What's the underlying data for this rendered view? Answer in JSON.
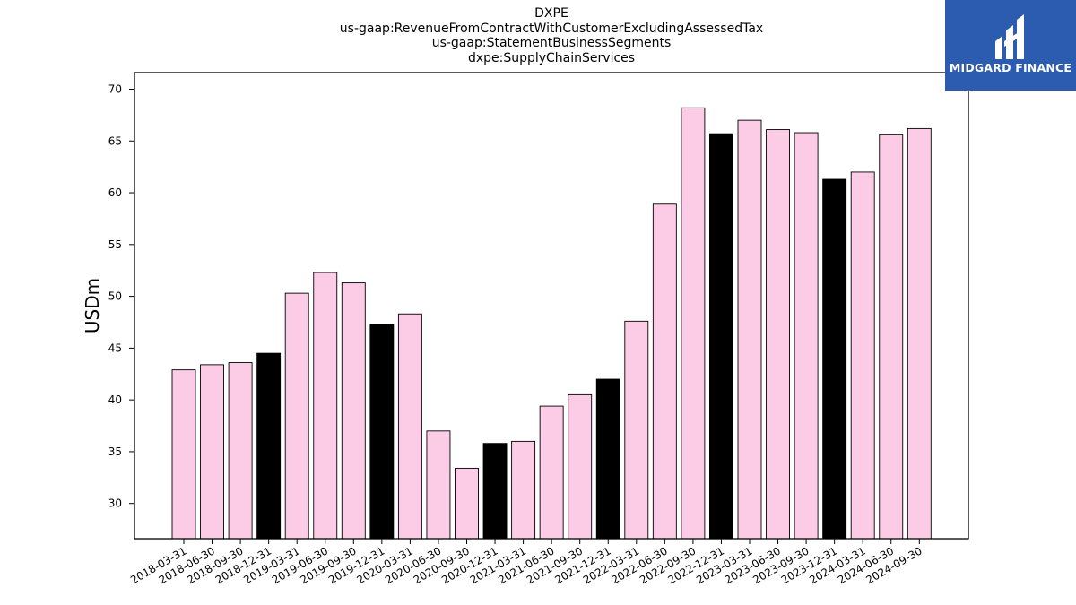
{
  "title_lines": [
    "DXPE",
    "us-gaap:RevenueFromContractWithCustomerExcludingAssessedTax",
    "us-gaap:StatementBusinessSegments",
    "dxpe:SupplyChainServices"
  ],
  "logo": {
    "text": "MIDGARD FINANCE",
    "icon": "midgard-logo-icon",
    "background": "#2b5caf"
  },
  "colors": {
    "bar": "#fccce6",
    "bar_highlight": "#000000",
    "bar_edge": "#000000"
  },
  "chart_data": {
    "type": "bar",
    "title": "DXPE us-gaap:RevenueFromContractWithCustomerExcludingAssessedTax us-gaap:StatementBusinessSegments dxpe:SupplyChainServices",
    "xlabel": "",
    "ylabel": "USDm",
    "ylim": [
      26.6,
      71.6
    ],
    "yticks": [
      30,
      35,
      40,
      45,
      50,
      55,
      60,
      65,
      70
    ],
    "grid": false,
    "categories": [
      "2018-03-31",
      "2018-06-30",
      "2018-09-30",
      "2018-12-31",
      "2019-03-31",
      "2019-06-30",
      "2019-09-30",
      "2019-12-31",
      "2020-03-31",
      "2020-06-30",
      "2020-09-30",
      "2020-12-31",
      "2021-03-31",
      "2021-06-30",
      "2021-09-30",
      "2021-12-31",
      "2022-03-31",
      "2022-06-30",
      "2022-09-30",
      "2022-12-31",
      "2023-03-31",
      "2023-06-30",
      "2023-09-30",
      "2023-12-31",
      "2024-03-31",
      "2024-06-30",
      "2024-09-30"
    ],
    "values": [
      42.9,
      43.4,
      43.6,
      44.5,
      50.3,
      52.3,
      51.3,
      47.3,
      48.3,
      37.0,
      33.4,
      35.8,
      36.0,
      39.4,
      40.5,
      42.0,
      47.6,
      58.9,
      68.2,
      65.7,
      67.0,
      66.1,
      65.8,
      61.3,
      62.0,
      65.6,
      66.2
    ],
    "highlighted": [
      "2018-12-31",
      "2019-12-31",
      "2020-12-31",
      "2021-12-31",
      "2022-12-31",
      "2023-12-31"
    ]
  }
}
